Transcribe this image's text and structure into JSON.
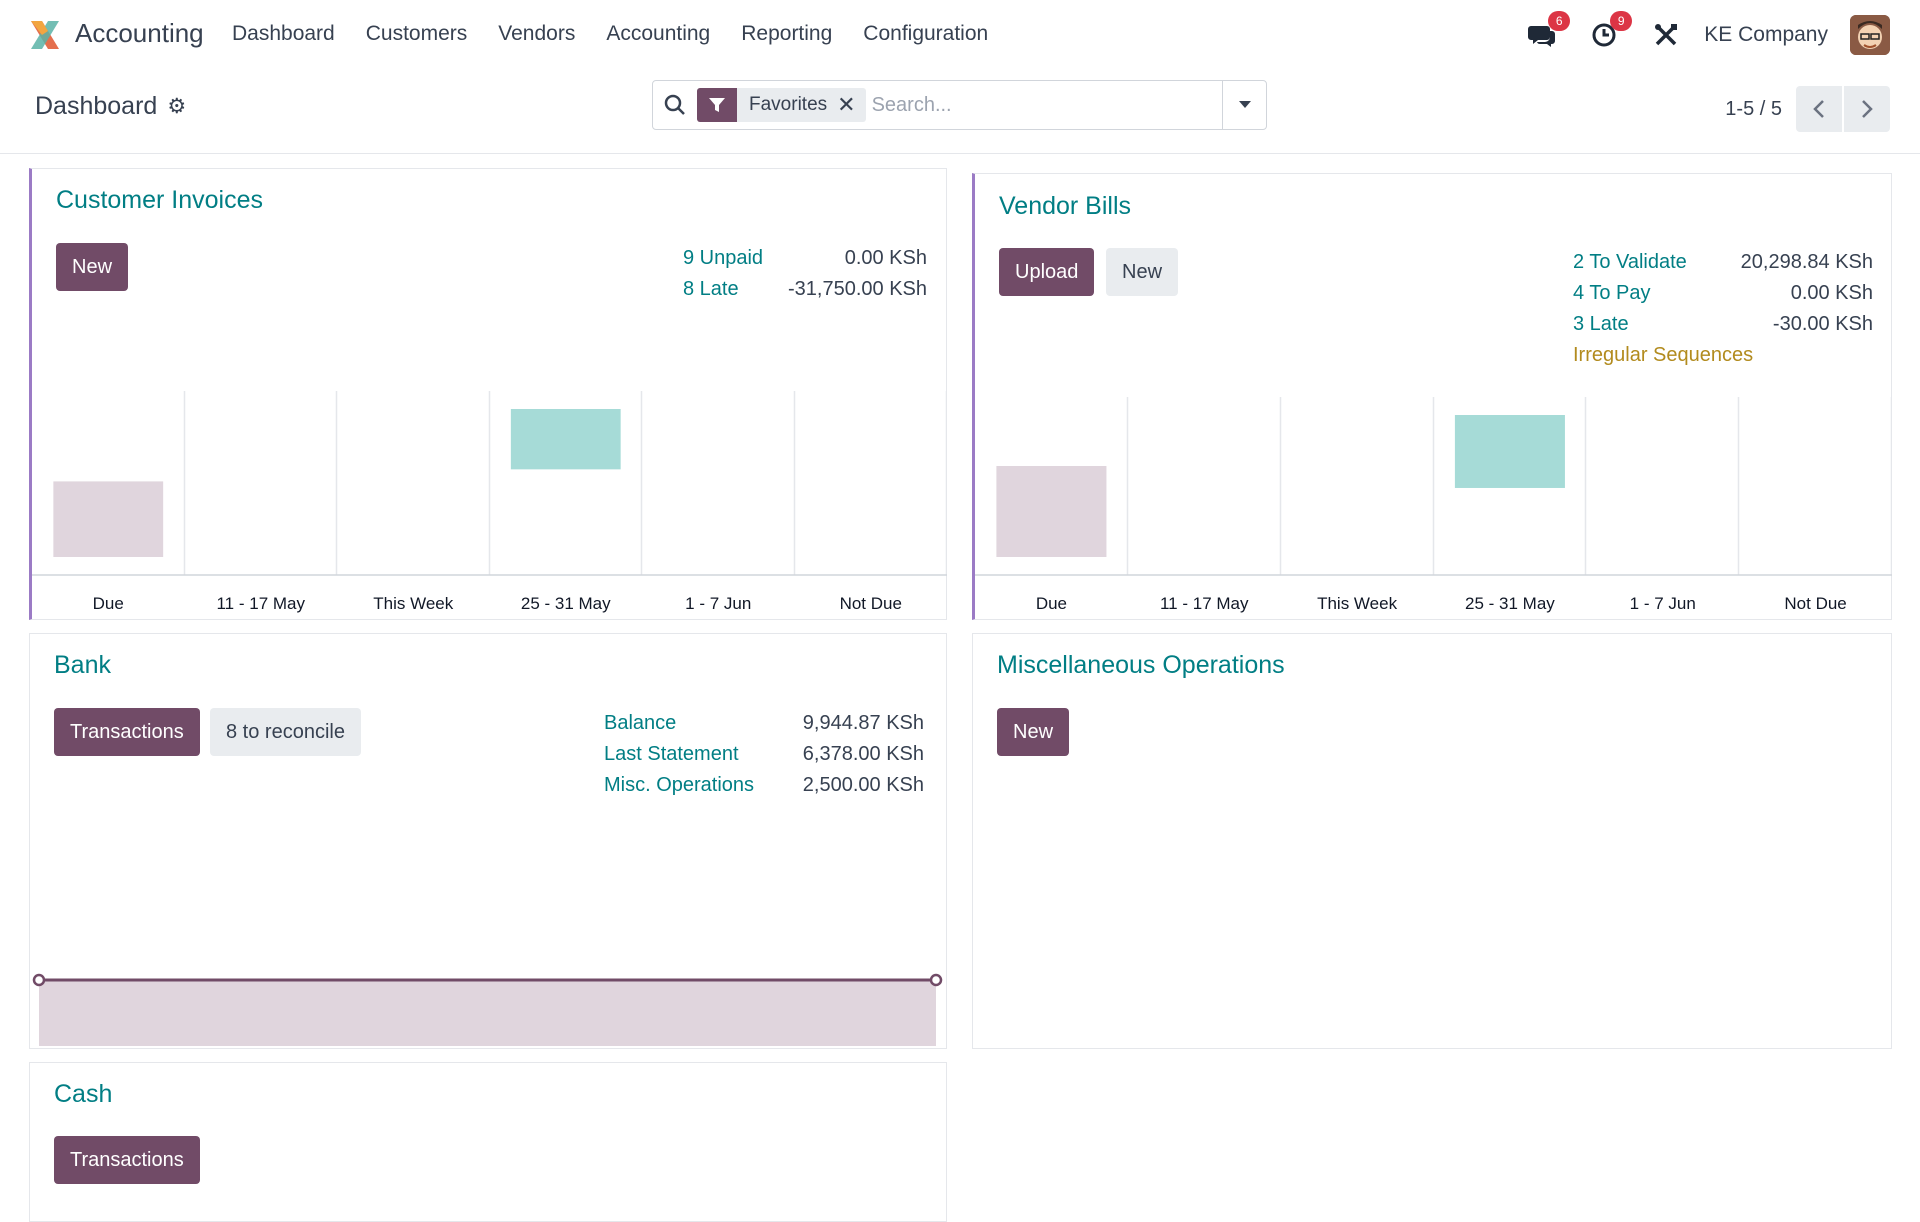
{
  "navbar": {
    "app_name": "Accounting",
    "menu": [
      "Dashboard",
      "Customers",
      "Vendors",
      "Accounting",
      "Reporting",
      "Configuration"
    ],
    "messages_badge": "6",
    "activities_badge": "9",
    "company": "KE Company"
  },
  "control_panel": {
    "breadcrumb": "Dashboard",
    "facet_label": "Favorites",
    "search_placeholder": "Search...",
    "pager": "1-5 / 5"
  },
  "colors": {
    "brand": "#714B67",
    "link": "#017e84",
    "bar_past": "#e0d5dd",
    "bar_future": "#a6dbd7",
    "warning": "#b28b1e"
  },
  "customer_invoices": {
    "title": "Customer Invoices",
    "new_label": "New",
    "stats": [
      {
        "label": "9 Unpaid",
        "value": "0.00 KSh"
      },
      {
        "label": "8 Late",
        "value": "-31,750.00 KSh"
      }
    ],
    "chart_data": {
      "type": "bar",
      "categories": [
        "Due",
        "11 - 17 May",
        "This Week",
        "25 - 31 May",
        "1 - 7 Jun",
        "Not Due"
      ],
      "values": [
        0.4,
        0,
        0,
        0.4,
        0,
        0
      ],
      "note_levels": "relative heights: past bar (Due) and future bar (25 - 31 May)",
      "bar_kinds": [
        "past",
        "none",
        "none",
        "future",
        "none",
        "none"
      ]
    }
  },
  "vendor_bills": {
    "title": "Vendor Bills",
    "upload_label": "Upload",
    "new_label": "New",
    "stats": [
      {
        "label": "2 To Validate",
        "value": "20,298.84 KSh"
      },
      {
        "label": "4 To Pay",
        "value": "0.00 KSh"
      },
      {
        "label": "3 Late",
        "value": "-30.00 KSh"
      }
    ],
    "warning": "Irregular Sequences",
    "chart_data": {
      "type": "bar",
      "categories": [
        "Due",
        "11 - 17 May",
        "This Week",
        "25 - 31 May",
        "1 - 7 Jun",
        "Not Due"
      ],
      "values": [
        0.5,
        0,
        0,
        0.5,
        0,
        0
      ],
      "bar_kinds": [
        "past",
        "none",
        "none",
        "future",
        "none",
        "none"
      ]
    }
  },
  "bank": {
    "title": "Bank",
    "transactions_label": "Transactions",
    "reconcile_label": "8 to reconcile",
    "stats": [
      {
        "label": "Balance",
        "value": "9,944.87 KSh"
      },
      {
        "label": "Last Statement",
        "value": "6,378.00 KSh"
      },
      {
        "label": "Misc. Operations",
        "value": "2,500.00 KSh"
      }
    ],
    "chart_data": {
      "type": "area",
      "values": [
        1,
        1
      ]
    }
  },
  "misc_operations": {
    "title": "Miscellaneous Operations",
    "new_label": "New"
  },
  "cash": {
    "title": "Cash",
    "transactions_label": "Transactions"
  }
}
